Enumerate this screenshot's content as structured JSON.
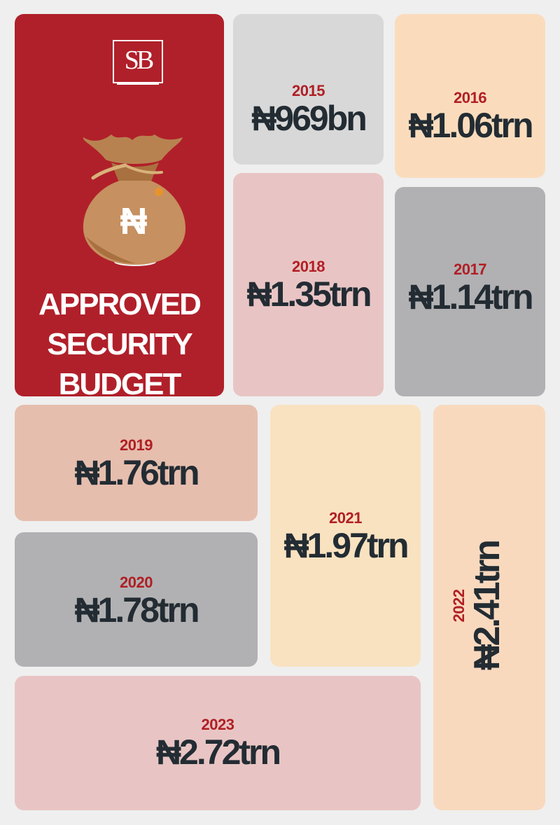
{
  "logo": {
    "text": "SB"
  },
  "hero": {
    "naira_symbol": "₦",
    "title_lines": [
      "APPROVED",
      "SECURITY",
      "BUDGET"
    ],
    "bg_color": "#b0202a"
  },
  "chart_data": {
    "type": "table",
    "title": "APPROVED SECURITY BUDGET",
    "categories": [
      "2015",
      "2016",
      "2017",
      "2018",
      "2019",
      "2020",
      "2021",
      "2022",
      "2023"
    ],
    "labels": [
      "₦969bn",
      "₦1.06trn",
      "₦1.14trn",
      "₦1.35trn",
      "₦1.76trn",
      "₦1.78trn",
      "₦1.97trn",
      "₦2.41trn",
      "₦2.72trn"
    ],
    "values": [
      0.969,
      1.06,
      1.14,
      1.35,
      1.76,
      1.78,
      1.97,
      2.41,
      2.72
    ],
    "unit": "trillion naira",
    "tile_colors": [
      "#d8d8d8",
      "#fadcbd",
      "#b1b1b3",
      "#e8c5c4",
      "#e6beae",
      "#b1b1b3",
      "#f9e2c0",
      "#f9d9be",
      "#e8c5c4"
    ]
  }
}
